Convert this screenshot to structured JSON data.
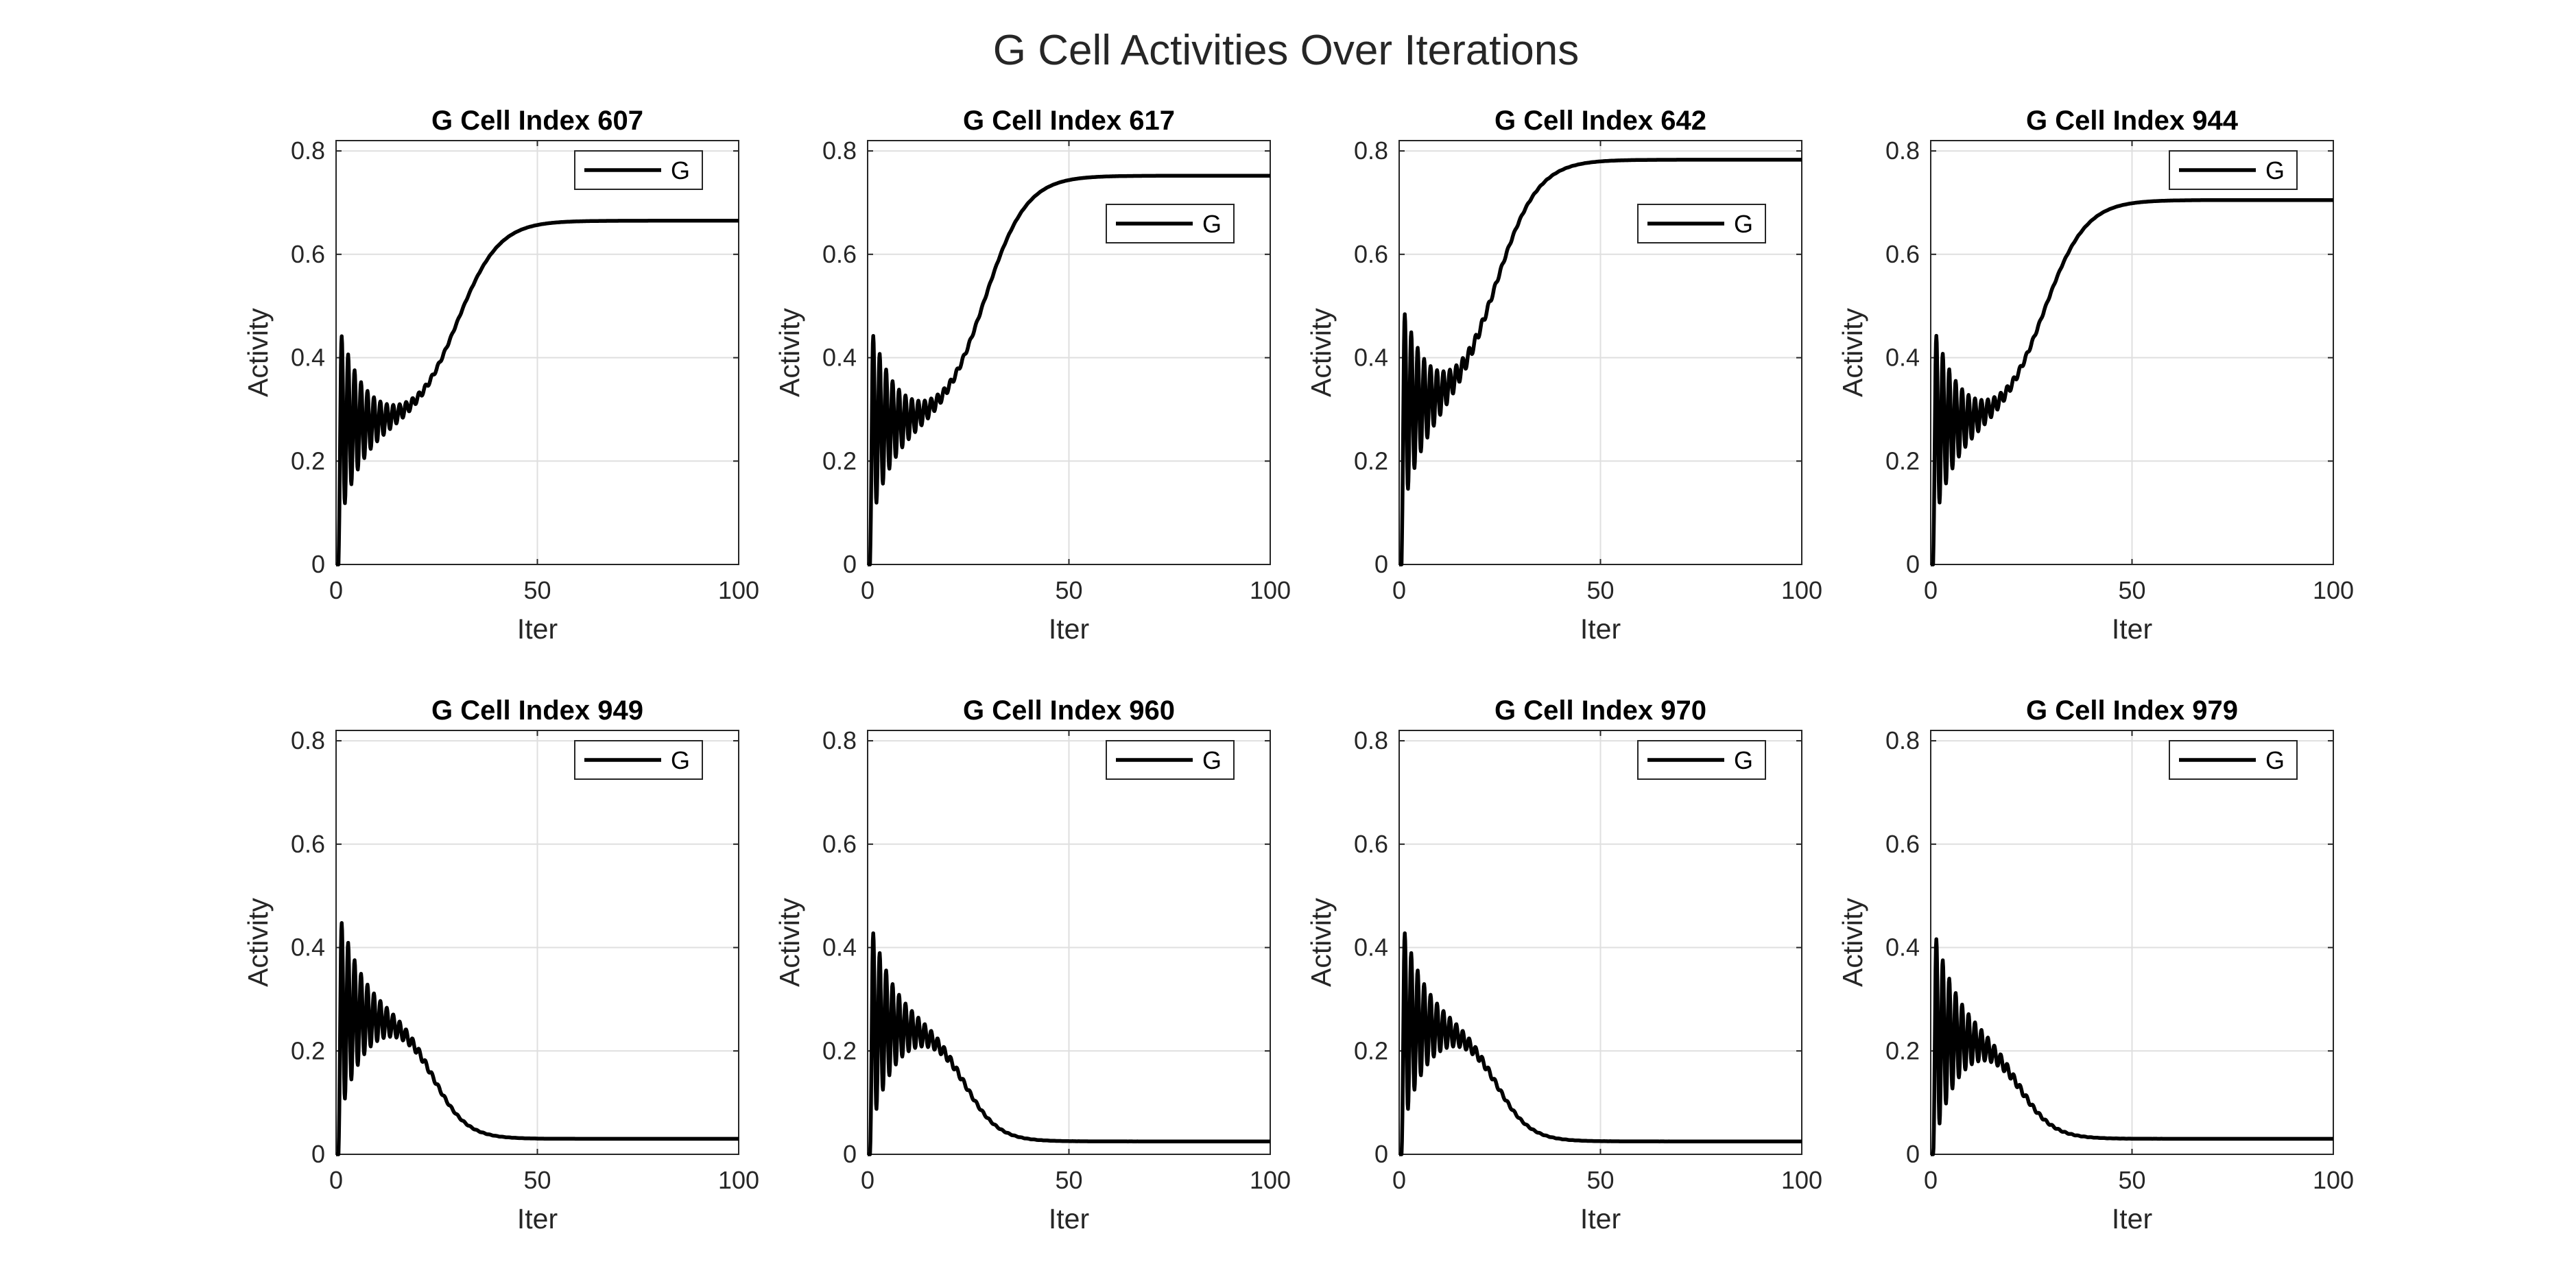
{
  "figure": {
    "title": "G Cell Activities Over Iterations"
  },
  "style": {
    "line_color": "#000000",
    "grid_color": "#dfdfdf",
    "axis_color": "#262626"
  },
  "chart_data": [
    {
      "type": "line",
      "title": "G Cell Index 607",
      "xlabel": "Iter",
      "ylabel": "Activity",
      "xlim": [
        0,
        100
      ],
      "ylim": [
        0,
        0.82
      ],
      "xticks": [
        0,
        50,
        100
      ],
      "yticks": [
        0,
        0.2,
        0.4,
        0.6,
        0.8
      ],
      "grid": true,
      "legend": "top-right",
      "series": [
        {
          "name": "G",
          "pattern": "rise",
          "peak": 0.46,
          "trough": 0.07,
          "settle": 0.27,
          "final": 0.665,
          "midpoint": 30
        }
      ]
    },
    {
      "type": "line",
      "title": "G Cell Index 617",
      "xlabel": "Iter",
      "ylabel": "Activity",
      "xlim": [
        0,
        100
      ],
      "ylim": [
        0,
        0.82
      ],
      "xticks": [
        0,
        50,
        100
      ],
      "yticks": [
        0,
        0.2,
        0.4,
        0.6,
        0.8
      ],
      "grid": true,
      "legend": "upper-right",
      "series": [
        {
          "name": "G",
          "pattern": "rise",
          "peak": 0.46,
          "trough": 0.07,
          "settle": 0.27,
          "final": 0.752,
          "midpoint": 29
        }
      ]
    },
    {
      "type": "line",
      "title": "G Cell Index 642",
      "xlabel": "Iter",
      "ylabel": "Activity",
      "xlim": [
        0,
        100
      ],
      "ylim": [
        0,
        0.82
      ],
      "xticks": [
        0,
        50,
        100
      ],
      "yticks": [
        0,
        0.2,
        0.4,
        0.6,
        0.8
      ],
      "grid": true,
      "legend": "upper-right",
      "series": [
        {
          "name": "G",
          "pattern": "rise",
          "peak": 0.48,
          "trough": 0.09,
          "settle": 0.3,
          "final": 0.783,
          "midpoint": 24
        }
      ]
    },
    {
      "type": "line",
      "title": "G Cell Index 944",
      "xlabel": "Iter",
      "ylabel": "Activity",
      "xlim": [
        0,
        100
      ],
      "ylim": [
        0,
        0.82
      ],
      "xticks": [
        0,
        50,
        100
      ],
      "yticks": [
        0,
        0.2,
        0.4,
        0.6,
        0.8
      ],
      "grid": true,
      "legend": "top-right",
      "series": [
        {
          "name": "G",
          "pattern": "rise",
          "peak": 0.46,
          "trough": 0.07,
          "settle": 0.27,
          "final": 0.705,
          "midpoint": 28
        }
      ]
    },
    {
      "type": "line",
      "title": "G Cell Index 949",
      "xlabel": "Iter",
      "ylabel": "Activity",
      "xlim": [
        0,
        100
      ],
      "ylim": [
        0,
        0.82
      ],
      "xticks": [
        0,
        50,
        100
      ],
      "yticks": [
        0,
        0.2,
        0.4,
        0.6,
        0.8
      ],
      "grid": true,
      "legend": "top-right",
      "series": [
        {
          "name": "G",
          "pattern": "fall",
          "peak": 0.48,
          "trough": 0.09,
          "settle": 0.27,
          "final": 0.03,
          "midpoint": 24
        }
      ]
    },
    {
      "type": "line",
      "title": "G Cell Index 960",
      "xlabel": "Iter",
      "ylabel": "Activity",
      "xlim": [
        0,
        100
      ],
      "ylim": [
        0,
        0.82
      ],
      "xticks": [
        0,
        50,
        100
      ],
      "yticks": [
        0,
        0.2,
        0.4,
        0.6,
        0.8
      ],
      "grid": true,
      "legend": "top-right",
      "series": [
        {
          "name": "G",
          "pattern": "fall",
          "peak": 0.46,
          "trough": 0.07,
          "settle": 0.25,
          "final": 0.025,
          "midpoint": 24
        }
      ]
    },
    {
      "type": "line",
      "title": "G Cell Index 970",
      "xlabel": "Iter",
      "ylabel": "Activity",
      "xlim": [
        0,
        100
      ],
      "ylim": [
        0,
        0.82
      ],
      "xticks": [
        0,
        50,
        100
      ],
      "yticks": [
        0,
        0.2,
        0.4,
        0.6,
        0.8
      ],
      "grid": true,
      "legend": "top-right",
      "series": [
        {
          "name": "G",
          "pattern": "fall",
          "peak": 0.46,
          "trough": 0.07,
          "settle": 0.25,
          "final": 0.025,
          "midpoint": 24
        }
      ]
    },
    {
      "type": "line",
      "title": "G Cell Index 979",
      "xlabel": "Iter",
      "ylabel": "Activity",
      "xlim": [
        0,
        100
      ],
      "ylim": [
        0,
        0.82
      ],
      "xticks": [
        0,
        50,
        100
      ],
      "yticks": [
        0,
        0.2,
        0.4,
        0.6,
        0.8
      ],
      "grid": true,
      "legend": "top-right",
      "series": [
        {
          "name": "G",
          "pattern": "fall",
          "peak": 0.45,
          "trough": 0.06,
          "settle": 0.23,
          "final": 0.03,
          "midpoint": 22
        }
      ]
    }
  ]
}
